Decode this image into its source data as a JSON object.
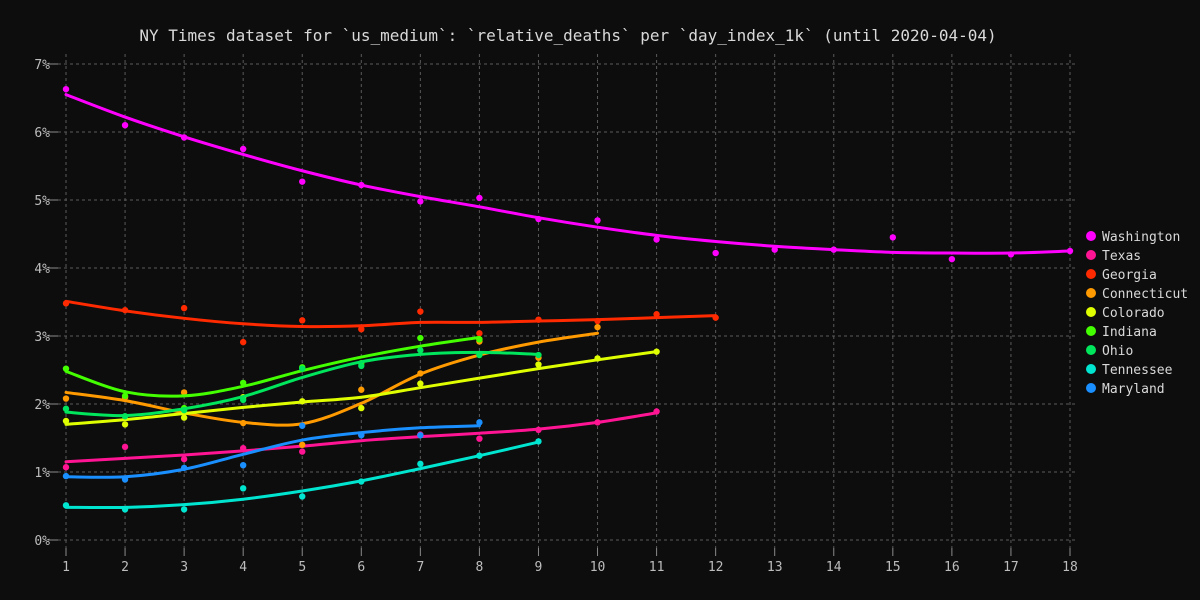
{
  "chart_data": {
    "type": "scatter",
    "title": "NY Times dataset for `us_medium`: `relative_deaths` per `day_index_1k` (until 2020-04-04)",
    "xlabel": "",
    "ylabel": "",
    "xlim": [
      1,
      18
    ],
    "ylim": [
      0,
      7
    ],
    "x_ticks": [
      1,
      2,
      3,
      4,
      5,
      6,
      7,
      8,
      9,
      10,
      11,
      12,
      13,
      14,
      15,
      16,
      17,
      18
    ],
    "y_ticks": [
      0,
      1,
      2,
      3,
      4,
      5,
      6,
      7
    ],
    "y_tick_labels": [
      "0%",
      "1%",
      "2%",
      "3%",
      "4%",
      "5%",
      "6%",
      "7%"
    ],
    "grid": true,
    "legend_position": "right",
    "series": [
      {
        "name": "Washington",
        "color": "#ff00ff",
        "points": [
          [
            1,
            6.63
          ],
          [
            2,
            6.1
          ],
          [
            3,
            5.92
          ],
          [
            4,
            5.75
          ],
          [
            5,
            5.27
          ],
          [
            6,
            5.22
          ],
          [
            7,
            4.98
          ],
          [
            8,
            5.03
          ],
          [
            9,
            4.72
          ],
          [
            10,
            4.7
          ],
          [
            11,
            4.42
          ],
          [
            12,
            4.22
          ],
          [
            13,
            4.27
          ],
          [
            14,
            4.27
          ],
          [
            15,
            4.45
          ],
          [
            16,
            4.13
          ],
          [
            17,
            4.2
          ],
          [
            18,
            4.25
          ]
        ],
        "trend": [
          [
            1,
            6.55
          ],
          [
            2,
            6.22
          ],
          [
            3,
            5.93
          ],
          [
            4,
            5.67
          ],
          [
            5,
            5.43
          ],
          [
            6,
            5.22
          ],
          [
            7,
            5.05
          ],
          [
            8,
            4.9
          ],
          [
            9,
            4.74
          ],
          [
            10,
            4.6
          ],
          [
            11,
            4.48
          ],
          [
            12,
            4.39
          ],
          [
            13,
            4.32
          ],
          [
            14,
            4.27
          ],
          [
            15,
            4.23
          ],
          [
            16,
            4.22
          ],
          [
            17,
            4.22
          ],
          [
            18,
            4.25
          ]
        ]
      },
      {
        "name": "Texas",
        "color": "#ff1493",
        "points": [
          [
            1,
            1.07
          ],
          [
            2,
            1.37
          ],
          [
            3,
            1.19
          ],
          [
            4,
            1.35
          ],
          [
            5,
            1.3
          ],
          [
            6,
            1.55
          ],
          [
            7,
            1.55
          ],
          [
            8,
            1.49
          ],
          [
            9,
            1.62
          ],
          [
            10,
            1.73
          ],
          [
            11,
            1.89
          ]
        ],
        "trend": [
          [
            1,
            1.15
          ],
          [
            2,
            1.2
          ],
          [
            3,
            1.25
          ],
          [
            4,
            1.31
          ],
          [
            5,
            1.38
          ],
          [
            6,
            1.46
          ],
          [
            7,
            1.52
          ],
          [
            8,
            1.57
          ],
          [
            9,
            1.63
          ],
          [
            10,
            1.73
          ],
          [
            11,
            1.87
          ]
        ]
      },
      {
        "name": "Georgia",
        "color": "#ff2a00",
        "points": [
          [
            1,
            3.48
          ],
          [
            2,
            3.38
          ],
          [
            3,
            3.41
          ],
          [
            4,
            2.91
          ],
          [
            5,
            3.23
          ],
          [
            6,
            3.1
          ],
          [
            7,
            3.36
          ],
          [
            8,
            3.04
          ],
          [
            9,
            3.24
          ],
          [
            10,
            3.22
          ],
          [
            11,
            3.32
          ],
          [
            12,
            3.27
          ]
        ],
        "trend": [
          [
            1,
            3.51
          ],
          [
            2,
            3.37
          ],
          [
            3,
            3.26
          ],
          [
            4,
            3.18
          ],
          [
            5,
            3.14
          ],
          [
            6,
            3.15
          ],
          [
            7,
            3.2
          ],
          [
            8,
            3.2
          ],
          [
            9,
            3.22
          ],
          [
            10,
            3.24
          ],
          [
            11,
            3.27
          ],
          [
            12,
            3.3
          ]
        ]
      },
      {
        "name": "Connecticut",
        "color": "#ff9a00",
        "points": [
          [
            1,
            2.08
          ],
          [
            2,
            2.1
          ],
          [
            3,
            2.17
          ],
          [
            4,
            1.72
          ],
          [
            5,
            1.4
          ],
          [
            6,
            2.21
          ],
          [
            7,
            2.45
          ],
          [
            8,
            2.92
          ],
          [
            9,
            2.68
          ],
          [
            10,
            3.13
          ]
        ],
        "trend": [
          [
            1,
            2.17
          ],
          [
            2,
            2.05
          ],
          [
            3,
            1.87
          ],
          [
            4,
            1.73
          ],
          [
            5,
            1.71
          ],
          [
            6,
            2.01
          ],
          [
            7,
            2.44
          ],
          [
            8,
            2.72
          ],
          [
            9,
            2.91
          ],
          [
            10,
            3.04
          ]
        ]
      },
      {
        "name": "Colorado",
        "color": "#dfff00",
        "points": [
          [
            1,
            1.75
          ],
          [
            2,
            1.7
          ],
          [
            3,
            1.8
          ],
          [
            4,
            2.1
          ],
          [
            5,
            2.04
          ],
          [
            6,
            1.94
          ],
          [
            7,
            2.3
          ],
          [
            8,
            2.95
          ],
          [
            9,
            2.58
          ],
          [
            10,
            2.67
          ],
          [
            11,
            2.77
          ]
        ],
        "trend": [
          [
            1,
            1.7
          ],
          [
            2,
            1.77
          ],
          [
            3,
            1.86
          ],
          [
            4,
            1.95
          ],
          [
            5,
            2.03
          ],
          [
            6,
            2.1
          ],
          [
            7,
            2.24
          ],
          [
            8,
            2.38
          ],
          [
            9,
            2.52
          ],
          [
            10,
            2.65
          ],
          [
            11,
            2.77
          ]
        ]
      },
      {
        "name": "Indiana",
        "color": "#44ff00",
        "points": [
          [
            1,
            2.52
          ],
          [
            2,
            2.12
          ],
          [
            3,
            1.94
          ],
          [
            4,
            2.31
          ],
          [
            5,
            2.54
          ],
          [
            6,
            2.6
          ],
          [
            7,
            2.97
          ],
          [
            8,
            2.95
          ]
        ],
        "trend": [
          [
            1,
            2.48
          ],
          [
            2,
            2.18
          ],
          [
            3,
            2.12
          ],
          [
            4,
            2.26
          ],
          [
            5,
            2.49
          ],
          [
            6,
            2.69
          ],
          [
            7,
            2.85
          ],
          [
            8,
            2.98
          ]
        ]
      },
      {
        "name": "Ohio",
        "color": "#00e65c",
        "points": [
          [
            1,
            1.93
          ],
          [
            2,
            1.82
          ],
          [
            3,
            1.91
          ],
          [
            4,
            2.06
          ],
          [
            5,
            2.52
          ],
          [
            6,
            2.56
          ],
          [
            7,
            2.79
          ],
          [
            8,
            2.72
          ],
          [
            9,
            2.72
          ]
        ],
        "trend": [
          [
            1,
            1.88
          ],
          [
            2,
            1.83
          ],
          [
            3,
            1.93
          ],
          [
            4,
            2.11
          ],
          [
            5,
            2.39
          ],
          [
            6,
            2.62
          ],
          [
            7,
            2.73
          ],
          [
            8,
            2.76
          ],
          [
            9,
            2.73
          ]
        ]
      },
      {
        "name": "Tennessee",
        "color": "#00e5d0",
        "points": [
          [
            1,
            0.51
          ],
          [
            2,
            0.45
          ],
          [
            3,
            0.45
          ],
          [
            4,
            0.76
          ],
          [
            5,
            0.64
          ],
          [
            6,
            0.86
          ],
          [
            7,
            1.12
          ],
          [
            8,
            1.24
          ],
          [
            9,
            1.45
          ]
        ],
        "trend": [
          [
            1,
            0.48
          ],
          [
            2,
            0.48
          ],
          [
            3,
            0.52
          ],
          [
            4,
            0.6
          ],
          [
            5,
            0.72
          ],
          [
            6,
            0.87
          ],
          [
            7,
            1.05
          ],
          [
            8,
            1.24
          ],
          [
            9,
            1.44
          ]
        ]
      },
      {
        "name": "Maryland",
        "color": "#1a8fff",
        "points": [
          [
            1,
            0.94
          ],
          [
            2,
            0.89
          ],
          [
            3,
            1.06
          ],
          [
            4,
            1.1
          ],
          [
            5,
            1.68
          ],
          [
            6,
            1.54
          ],
          [
            7,
            1.54
          ],
          [
            8,
            1.73
          ]
        ],
        "trend": [
          [
            1,
            0.93
          ],
          [
            2,
            0.93
          ],
          [
            3,
            1.04
          ],
          [
            4,
            1.26
          ],
          [
            5,
            1.47
          ],
          [
            6,
            1.58
          ],
          [
            7,
            1.65
          ],
          [
            8,
            1.68
          ]
        ]
      }
    ]
  }
}
